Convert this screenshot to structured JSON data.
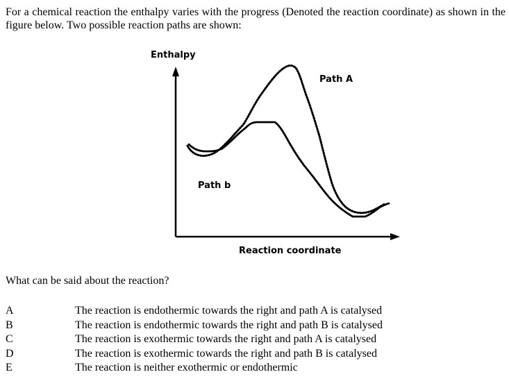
{
  "intro": "For a chemical reaction the enthalpy varies with the progress (Denoted the reaction coordinate) as shown in the figure below. Two possible reaction paths are shown:",
  "diagram": {
    "y_axis_label": "Enthalpy",
    "x_axis_label": "Reaction coordinate",
    "path_a_label": "Path A",
    "path_b_label": "Path b"
  },
  "question": "What can be said about the reaction?",
  "options": [
    {
      "letter": "A",
      "text": "The reaction is endothermic towards the right and path A is catalysed"
    },
    {
      "letter": "B",
      "text": "The reaction is endothermic towards the right and path B is catalysed"
    },
    {
      "letter": "C",
      "text": "The reaction is exothermic towards the right and path A is catalysed"
    },
    {
      "letter": "D",
      "text": "The reaction is exothermic towards the right and path B is catalysed"
    },
    {
      "letter": "E",
      "text": "The reaction is neither exothermic or endothermic"
    }
  ]
}
